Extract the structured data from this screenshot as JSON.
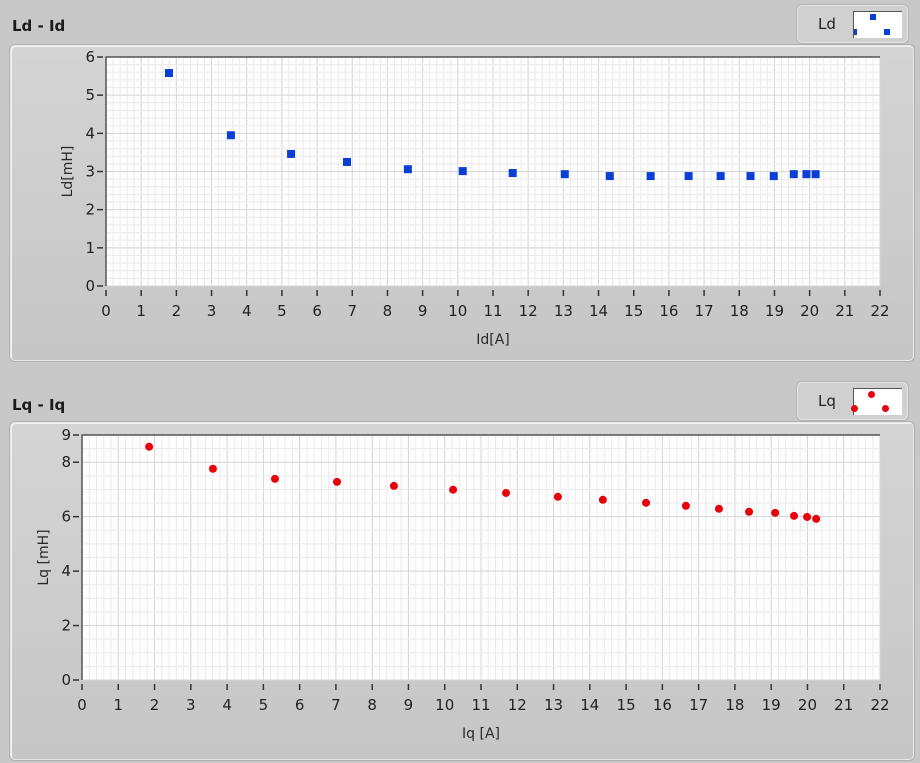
{
  "chart_data": [
    {
      "type": "scatter",
      "title": "Ld - Id",
      "xlabel": "Id[A]",
      "ylabel": "Ld[mH]",
      "xlim": [
        0,
        22
      ],
      "ylim": [
        0,
        6
      ],
      "xticks": [
        0,
        1,
        2,
        3,
        4,
        5,
        6,
        7,
        8,
        9,
        10,
        11,
        12,
        13,
        14,
        15,
        16,
        17,
        18,
        19,
        20,
        21,
        22
      ],
      "yticks": [
        0,
        1,
        2,
        3,
        4,
        5,
        6
      ],
      "grid": true,
      "legend": {
        "position": "top-right",
        "entries": [
          "Ld"
        ]
      },
      "marker": "square",
      "color": "#0a3fd6",
      "series": [
        {
          "name": "Ld",
          "x": [
            1.79,
            3.55,
            5.26,
            6.85,
            8.58,
            10.14,
            11.56,
            13.04,
            14.32,
            15.48,
            16.56,
            17.47,
            18.32,
            18.98,
            19.55,
            19.91,
            20.17
          ],
          "y": [
            5.58,
            3.95,
            3.46,
            3.25,
            3.06,
            3.01,
            2.96,
            2.93,
            2.88,
            2.88,
            2.88,
            2.88,
            2.88,
            2.88,
            2.93,
            2.93,
            2.93
          ]
        }
      ]
    },
    {
      "type": "scatter",
      "title": "Lq - Iq",
      "xlabel": "Iq [A]",
      "ylabel": "Lq [mH]",
      "xlim": [
        0,
        22
      ],
      "ylim": [
        0,
        9
      ],
      "xticks": [
        0,
        1,
        2,
        3,
        4,
        5,
        6,
        7,
        8,
        9,
        10,
        11,
        12,
        13,
        14,
        15,
        16,
        17,
        18,
        19,
        20,
        21,
        22
      ],
      "yticks": [
        0,
        2,
        4,
        6,
        8,
        9
      ],
      "grid": true,
      "legend": {
        "position": "top-right",
        "entries": [
          "Lq"
        ]
      },
      "marker": "circle",
      "color": "#e8000a",
      "series": [
        {
          "name": "Lq",
          "x": [
            1.85,
            3.61,
            5.32,
            7.03,
            8.6,
            10.23,
            11.69,
            13.12,
            14.36,
            15.55,
            16.65,
            17.56,
            18.39,
            19.11,
            19.63,
            19.99,
            20.24
          ],
          "y": [
            8.57,
            7.76,
            7.39,
            7.28,
            7.13,
            6.99,
            6.87,
            6.73,
            6.62,
            6.51,
            6.4,
            6.29,
            6.18,
            6.14,
            6.03,
            5.99,
            5.92
          ]
        }
      ]
    }
  ]
}
